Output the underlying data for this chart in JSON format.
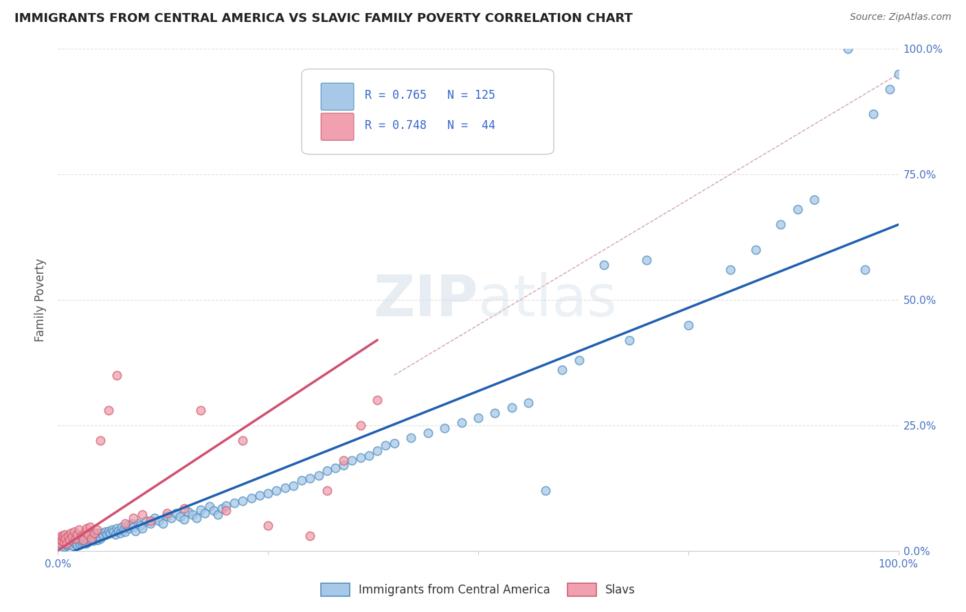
{
  "title": "IMMIGRANTS FROM CENTRAL AMERICA VS SLAVIC FAMILY POVERTY CORRELATION CHART",
  "source": "Source: ZipAtlas.com",
  "ylabel": "Family Poverty",
  "right_yticks": [
    "0.0%",
    "25.0%",
    "50.0%",
    "75.0%",
    "100.0%"
  ],
  "blue_color": "#a8c8e8",
  "pink_color": "#f0a0b0",
  "blue_edge_color": "#5090c0",
  "pink_edge_color": "#d06070",
  "blue_line_color": "#2060b0",
  "pink_line_color": "#d05070",
  "dashed_line_color": "#d0a0b0",
  "background_color": "#ffffff",
  "grid_color": "#e0e0e0",
  "watermark": "ZIPatlas",
  "blue_scatter": [
    [
      0.002,
      0.01
    ],
    [
      0.003,
      0.015
    ],
    [
      0.004,
      0.005
    ],
    [
      0.005,
      0.02
    ],
    [
      0.006,
      0.01
    ],
    [
      0.007,
      0.015
    ],
    [
      0.008,
      0.008
    ],
    [
      0.009,
      0.02
    ],
    [
      0.01,
      0.015
    ],
    [
      0.011,
      0.01
    ],
    [
      0.012,
      0.018
    ],
    [
      0.013,
      0.012
    ],
    [
      0.014,
      0.022
    ],
    [
      0.015,
      0.015
    ],
    [
      0.016,
      0.02
    ],
    [
      0.017,
      0.01
    ],
    [
      0.018,
      0.025
    ],
    [
      0.019,
      0.018
    ],
    [
      0.02,
      0.015
    ],
    [
      0.021,
      0.022
    ],
    [
      0.022,
      0.018
    ],
    [
      0.023,
      0.012
    ],
    [
      0.024,
      0.025
    ],
    [
      0.025,
      0.02
    ],
    [
      0.026,
      0.015
    ],
    [
      0.027,
      0.022
    ],
    [
      0.028,
      0.018
    ],
    [
      0.029,
      0.025
    ],
    [
      0.03,
      0.02
    ],
    [
      0.031,
      0.028
    ],
    [
      0.032,
      0.022
    ],
    [
      0.033,
      0.015
    ],
    [
      0.034,
      0.028
    ],
    [
      0.035,
      0.025
    ],
    [
      0.036,
      0.018
    ],
    [
      0.037,
      0.03
    ],
    [
      0.038,
      0.022
    ],
    [
      0.039,
      0.028
    ],
    [
      0.04,
      0.025
    ],
    [
      0.041,
      0.032
    ],
    [
      0.042,
      0.02
    ],
    [
      0.043,
      0.03
    ],
    [
      0.044,
      0.025
    ],
    [
      0.045,
      0.035
    ],
    [
      0.046,
      0.028
    ],
    [
      0.047,
      0.022
    ],
    [
      0.048,
      0.035
    ],
    [
      0.049,
      0.03
    ],
    [
      0.05,
      0.025
    ],
    [
      0.052,
      0.035
    ],
    [
      0.054,
      0.03
    ],
    [
      0.056,
      0.038
    ],
    [
      0.058,
      0.032
    ],
    [
      0.06,
      0.04
    ],
    [
      0.062,
      0.035
    ],
    [
      0.064,
      0.042
    ],
    [
      0.066,
      0.038
    ],
    [
      0.068,
      0.032
    ],
    [
      0.07,
      0.045
    ],
    [
      0.072,
      0.04
    ],
    [
      0.074,
      0.035
    ],
    [
      0.076,
      0.048
    ],
    [
      0.078,
      0.042
    ],
    [
      0.08,
      0.038
    ],
    [
      0.082,
      0.05
    ],
    [
      0.085,
      0.045
    ],
    [
      0.088,
      0.055
    ],
    [
      0.09,
      0.048
    ],
    [
      0.092,
      0.04
    ],
    [
      0.095,
      0.055
    ],
    [
      0.098,
      0.05
    ],
    [
      0.1,
      0.045
    ],
    [
      0.105,
      0.06
    ],
    [
      0.11,
      0.055
    ],
    [
      0.115,
      0.065
    ],
    [
      0.12,
      0.06
    ],
    [
      0.125,
      0.055
    ],
    [
      0.13,
      0.07
    ],
    [
      0.135,
      0.065
    ],
    [
      0.14,
      0.075
    ],
    [
      0.145,
      0.068
    ],
    [
      0.15,
      0.062
    ],
    [
      0.155,
      0.078
    ],
    [
      0.16,
      0.072
    ],
    [
      0.165,
      0.065
    ],
    [
      0.17,
      0.082
    ],
    [
      0.175,
      0.075
    ],
    [
      0.18,
      0.088
    ],
    [
      0.185,
      0.08
    ],
    [
      0.19,
      0.072
    ],
    [
      0.195,
      0.085
    ],
    [
      0.2,
      0.09
    ],
    [
      0.21,
      0.095
    ],
    [
      0.22,
      0.1
    ],
    [
      0.23,
      0.105
    ],
    [
      0.24,
      0.11
    ],
    [
      0.25,
      0.115
    ],
    [
      0.26,
      0.12
    ],
    [
      0.27,
      0.125
    ],
    [
      0.28,
      0.13
    ],
    [
      0.29,
      0.14
    ],
    [
      0.3,
      0.145
    ],
    [
      0.31,
      0.15
    ],
    [
      0.32,
      0.16
    ],
    [
      0.33,
      0.165
    ],
    [
      0.34,
      0.17
    ],
    [
      0.35,
      0.18
    ],
    [
      0.36,
      0.185
    ],
    [
      0.37,
      0.19
    ],
    [
      0.38,
      0.2
    ],
    [
      0.39,
      0.21
    ],
    [
      0.4,
      0.215
    ],
    [
      0.42,
      0.225
    ],
    [
      0.44,
      0.235
    ],
    [
      0.46,
      0.245
    ],
    [
      0.48,
      0.255
    ],
    [
      0.5,
      0.265
    ],
    [
      0.52,
      0.275
    ],
    [
      0.54,
      0.285
    ],
    [
      0.56,
      0.295
    ],
    [
      0.58,
      0.12
    ],
    [
      0.6,
      0.36
    ],
    [
      0.62,
      0.38
    ],
    [
      0.65,
      0.57
    ],
    [
      0.68,
      0.42
    ],
    [
      0.7,
      0.58
    ],
    [
      0.75,
      0.45
    ],
    [
      0.8,
      0.56
    ],
    [
      0.83,
      0.6
    ],
    [
      0.86,
      0.65
    ],
    [
      0.88,
      0.68
    ],
    [
      0.9,
      0.7
    ],
    [
      0.94,
      1.0
    ],
    [
      0.96,
      0.56
    ],
    [
      0.97,
      0.87
    ],
    [
      0.99,
      0.92
    ],
    [
      1.0,
      0.95
    ]
  ],
  "pink_scatter": [
    [
      0.002,
      0.025
    ],
    [
      0.003,
      0.015
    ],
    [
      0.004,
      0.03
    ],
    [
      0.005,
      0.02
    ],
    [
      0.006,
      0.028
    ],
    [
      0.007,
      0.018
    ],
    [
      0.008,
      0.032
    ],
    [
      0.009,
      0.025
    ],
    [
      0.01,
      0.015
    ],
    [
      0.012,
      0.03
    ],
    [
      0.014,
      0.022
    ],
    [
      0.015,
      0.035
    ],
    [
      0.017,
      0.028
    ],
    [
      0.019,
      0.038
    ],
    [
      0.021,
      0.025
    ],
    [
      0.023,
      0.032
    ],
    [
      0.025,
      0.042
    ],
    [
      0.028,
      0.03
    ],
    [
      0.03,
      0.022
    ],
    [
      0.032,
      0.038
    ],
    [
      0.034,
      0.045
    ],
    [
      0.036,
      0.032
    ],
    [
      0.038,
      0.048
    ],
    [
      0.04,
      0.025
    ],
    [
      0.043,
      0.035
    ],
    [
      0.046,
      0.042
    ],
    [
      0.05,
      0.22
    ],
    [
      0.06,
      0.28
    ],
    [
      0.07,
      0.35
    ],
    [
      0.08,
      0.055
    ],
    [
      0.09,
      0.065
    ],
    [
      0.1,
      0.072
    ],
    [
      0.11,
      0.06
    ],
    [
      0.13,
      0.075
    ],
    [
      0.15,
      0.085
    ],
    [
      0.17,
      0.28
    ],
    [
      0.2,
      0.08
    ],
    [
      0.22,
      0.22
    ],
    [
      0.25,
      0.05
    ],
    [
      0.3,
      0.03
    ],
    [
      0.32,
      0.12
    ],
    [
      0.34,
      0.18
    ],
    [
      0.36,
      0.25
    ],
    [
      0.38,
      0.3
    ]
  ],
  "blue_line": [
    [
      -0.01,
      -0.02
    ],
    [
      1.0,
      0.65
    ]
  ],
  "pink_line": [
    [
      -0.01,
      -0.01
    ],
    [
      0.38,
      0.42
    ]
  ],
  "dashed_line": [
    [
      0.4,
      0.35
    ],
    [
      1.0,
      0.95
    ]
  ],
  "xlim": [
    0.0,
    1.0
  ],
  "ylim": [
    0.0,
    1.0
  ]
}
